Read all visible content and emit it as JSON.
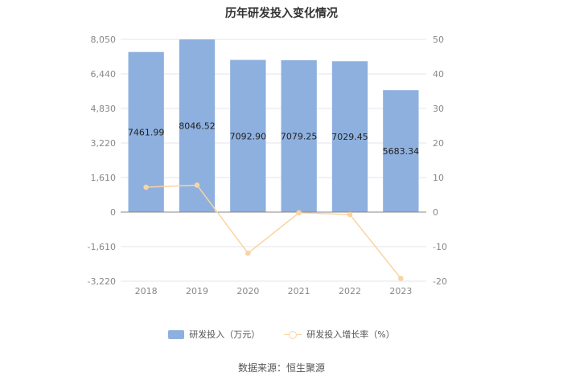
{
  "chart_data": {
    "type": "bar",
    "title": "历年研发投入变化情况",
    "categories": [
      "2018",
      "2019",
      "2020",
      "2021",
      "2022",
      "2023"
    ],
    "series": [
      {
        "name": "研发投入（万元）",
        "type": "bar",
        "axis": "left",
        "color": "#8eb0df",
        "values": [
          7461.99,
          8046.52,
          7092.9,
          7079.25,
          7029.45,
          5683.34
        ],
        "labels": [
          "7461.99",
          "8046.52",
          "7092.90",
          "7079.25",
          "7029.45",
          "5683.34"
        ]
      },
      {
        "name": "研发投入增长率（%）",
        "type": "line",
        "axis": "right",
        "color": "#f9d4a3",
        "values": [
          7.2,
          7.8,
          -11.9,
          -0.2,
          -0.7,
          -19.2
        ]
      }
    ],
    "y_left": {
      "ticks": [
        "8,050",
        "6,440",
        "4,830",
        "3,220",
        "1,610",
        "0",
        "-1,610",
        "-3,220"
      ],
      "ylim": [
        -3220,
        8050
      ]
    },
    "y_right": {
      "ticks": [
        "50",
        "40",
        "30",
        "20",
        "10",
        "0",
        "-10",
        "-20"
      ],
      "ylim": [
        -20,
        50
      ]
    },
    "legend_position": "bottom",
    "grid": true
  },
  "source": "数据来源：恒生聚源"
}
